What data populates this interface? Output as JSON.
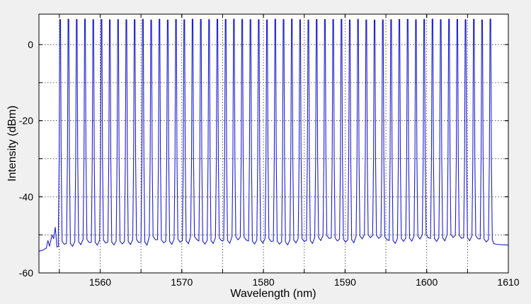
{
  "chart_data": {
    "type": "line",
    "title": "",
    "xlabel": "Wavelength (nm)",
    "ylabel": "Intensity (dBm)",
    "xlim": [
      1552.5,
      1610
    ],
    "ylim": [
      -60,
      8
    ],
    "xticks": [
      1560,
      1570,
      1580,
      1590,
      1600,
      1610
    ],
    "yticks": [
      -60,
      -40,
      -20,
      0
    ],
    "xgrid": [
      1555,
      1560,
      1565,
      1570,
      1575,
      1580,
      1585,
      1590,
      1595,
      1600,
      1605
    ],
    "ygrid": [
      -50,
      -40,
      -30,
      -20,
      -10,
      0
    ],
    "grid": "dotted",
    "series": [
      {
        "color": "#1f1fd0",
        "comb": {
          "first_peak_nm": 1555.1,
          "last_peak_nm": 1607.8,
          "peak_count": 53,
          "peak_dbm": 7.0,
          "floor_dbm": -52.0
        },
        "left_tail": [
          [
            1552.5,
            -54.3
          ],
          [
            1553.0,
            -54.0
          ],
          [
            1553.4,
            -53.5
          ],
          [
            1553.6,
            -51.5
          ],
          [
            1553.8,
            -53.0
          ],
          [
            1554.1,
            -50.0
          ],
          [
            1554.3,
            -51.0
          ],
          [
            1554.5,
            -48.0
          ],
          [
            1554.7,
            -53.2
          ],
          [
            1554.9,
            -53.0
          ]
        ],
        "right_tail": [
          [
            1608.2,
            -52.3
          ],
          [
            1608.6,
            -52.5
          ],
          [
            1609.2,
            -52.6
          ],
          [
            1610.0,
            -52.7
          ]
        ]
      }
    ]
  }
}
